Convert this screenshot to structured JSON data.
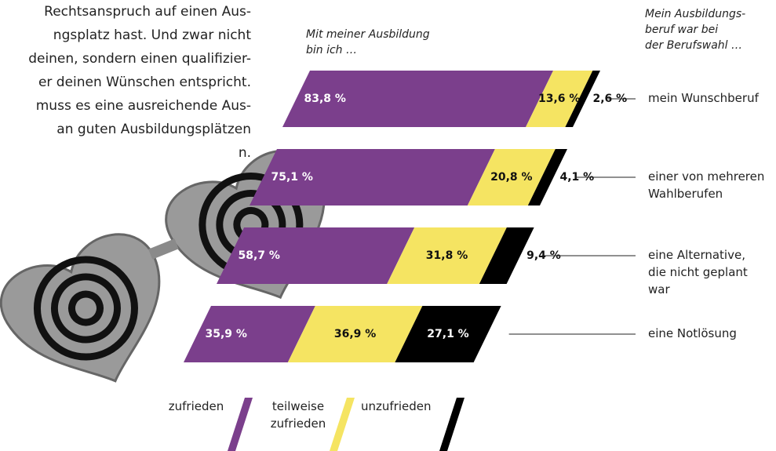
{
  "intro_lines": [
    "Rechtsanspruch auf einen Aus-",
    "ngsplatz hast. Und zwar nicht",
    "deinen, sondern einen qualifizier-",
    "er deinen Wünschen entspricht.",
    "muss es eine ausreichende Aus-",
    "an guten Ausbildungsplätzen",
    "n."
  ],
  "chart_data": {
    "type": "bar",
    "orientation": "horizontal",
    "stacked": true,
    "left_heading": [
      "Mit meiner Ausbildung",
      "bin ich …"
    ],
    "right_heading": [
      "Mein Ausbildungs-",
      "beruf war bei",
      "der Berufswahl …"
    ],
    "categories": [
      "mein Wunschberuf",
      "einer von mehreren Wahlberufen",
      "eine Alternative, die nicht geplant war",
      "eine Notlösung"
    ],
    "series": [
      {
        "name": "zufrieden",
        "color": "#7b3f8c",
        "values": [
          83.8,
          75.1,
          58.7,
          35.9
        ],
        "value_labels": [
          "83,8 %",
          "75,1 %",
          "58,7 %",
          "35,9 %"
        ]
      },
      {
        "name": "teilweise zufrieden",
        "color": "#f5e462",
        "values": [
          13.6,
          20.8,
          31.8,
          36.9
        ],
        "value_labels": [
          "13,6 %",
          "20,8 %",
          "31,8 %",
          "36,9 %"
        ]
      },
      {
        "name": "unzufrieden",
        "color": "#000000",
        "values": [
          2.6,
          4.1,
          9.4,
          27.1
        ],
        "value_labels": [
          "2,6 %",
          "4,1 %",
          "9,4 %",
          "27,1 %"
        ]
      }
    ]
  }
}
